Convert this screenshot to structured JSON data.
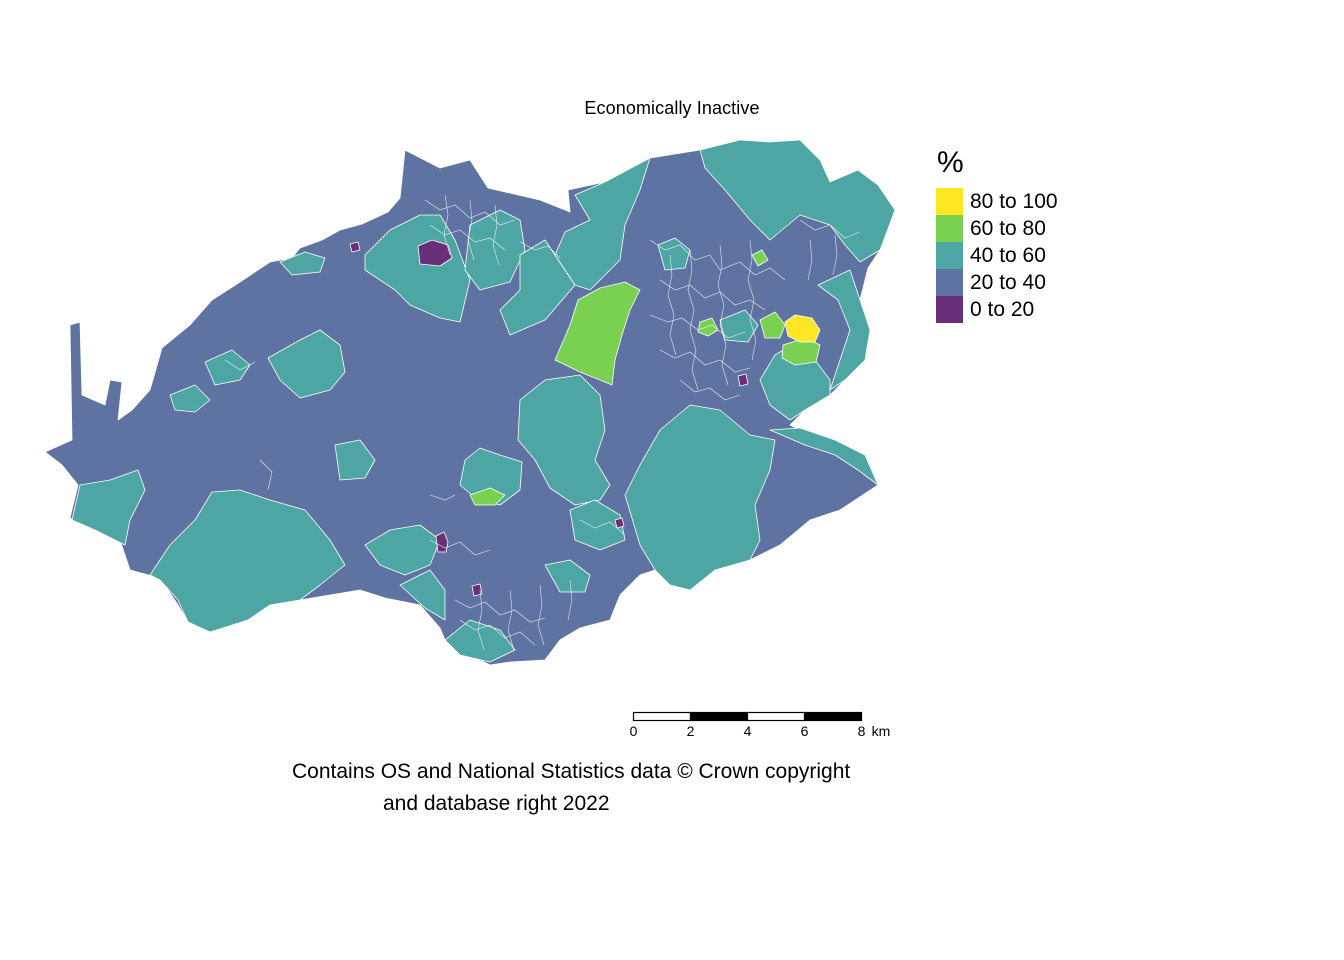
{
  "title": "Economically Inactive",
  "legend": {
    "title": "%",
    "items": [
      {
        "label": "80 to 100",
        "color": "#FDE725"
      },
      {
        "label": "60 to 80",
        "color": "#7AD151"
      },
      {
        "label": "40 to 60",
        "color": "#4EA6A4"
      },
      {
        "label": "20 to 40",
        "color": "#5E73A1"
      },
      {
        "label": "0 to 20",
        "color": "#693079"
      }
    ]
  },
  "scale_bar": {
    "ticks": [
      "0",
      "2",
      "4",
      "6",
      "8"
    ],
    "unit": "km"
  },
  "credit": {
    "line1": "Contains OS and National Statistics data © Crown copyright",
    "line2": "and database right 2022"
  }
}
